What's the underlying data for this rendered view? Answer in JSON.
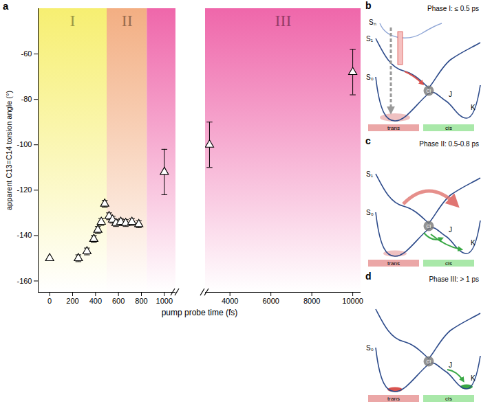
{
  "chart_data": {
    "type": "scatter",
    "panel_label": "a",
    "x_label": "pump probe time (fs)",
    "y_label": "apparent C13=C14 torsion angle (°)",
    "xlim": [
      -100,
      10400
    ],
    "x_break": [
      1100,
      2800
    ],
    "xticks": [
      0,
      200,
      400,
      600,
      800,
      1000,
      4000,
      6000,
      8000,
      10000
    ],
    "ylim": [
      -165,
      -40
    ],
    "yticks": [
      -160,
      -140,
      -120,
      -100,
      -80,
      -60
    ],
    "marker": "triangle",
    "color": "#000000",
    "x": [
      0,
      250,
      325,
      385,
      420,
      450,
      480,
      518,
      548,
      578,
      620,
      663,
      717,
      777,
      1000,
      3000,
      10000
    ],
    "values": [
      -150,
      -150,
      -147,
      -141.5,
      -137.5,
      -134,
      -126,
      -131.5,
      -133,
      -134.5,
      -134,
      -134.5,
      -134,
      -135,
      -112,
      -100,
      -68
    ],
    "errors": [
      null,
      1.5,
      1.5,
      1.5,
      1.5,
      1.5,
      1.5,
      1.5,
      1.5,
      1.5,
      1.5,
      1.5,
      1.5,
      1.5,
      10,
      10,
      10
    ],
    "phases": [
      {
        "label": "I",
        "start": -100,
        "end": 500,
        "color": "#f6ee6a"
      },
      {
        "label": "II",
        "start": 500,
        "end": 850,
        "color": "#f2aa7c"
      },
      {
        "label": "III",
        "start": 850,
        "end": 10400,
        "color": "#ee5fa6"
      }
    ]
  },
  "diagrams": [
    {
      "label": "b",
      "title": "Phase I: ≤ 0.5 ps",
      "states": [
        "Sₙ",
        "S₁",
        "S₀"
      ],
      "points": [
        "CI",
        "J",
        "K"
      ],
      "regions": [
        "trans",
        "cis"
      ]
    },
    {
      "label": "c",
      "title": "Phase II: 0.5-0.8 ps",
      "states": [
        "S₁",
        "S₀"
      ],
      "points": [
        "CI",
        "J",
        "K"
      ],
      "regions": [
        "trans",
        "cis"
      ]
    },
    {
      "label": "d",
      "title": "Phase III: > 1 ps",
      "states": [
        "S₀"
      ],
      "points": [
        "CI",
        "J",
        "K"
      ],
      "regions": [
        "trans",
        "cis"
      ]
    }
  ]
}
